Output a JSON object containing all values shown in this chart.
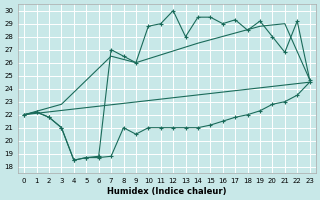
{
  "xlabel": "Humidex (Indice chaleur)",
  "background_color": "#c8e8e8",
  "grid_color": "#ffffff",
  "line_color": "#1a6b5a",
  "xlim": [
    -0.5,
    23.5
  ],
  "ylim": [
    17.5,
    30.5
  ],
  "xticks": [
    0,
    1,
    2,
    3,
    4,
    5,
    6,
    7,
    8,
    9,
    10,
    11,
    12,
    13,
    14,
    15,
    16,
    17,
    18,
    19,
    20,
    21,
    22,
    23
  ],
  "yticks": [
    18,
    19,
    20,
    21,
    22,
    23,
    24,
    25,
    26,
    27,
    28,
    29,
    30
  ],
  "line_jagged_lower": {
    "x": [
      0,
      1,
      2,
      3,
      4,
      5,
      6,
      7,
      8,
      9,
      10,
      11,
      12,
      13,
      14,
      15,
      16,
      17,
      18,
      19,
      20,
      21,
      22,
      23
    ],
    "y": [
      22.0,
      22.2,
      21.8,
      21.0,
      18.5,
      18.7,
      18.7,
      18.8,
      21.0,
      20.5,
      21.0,
      21.0,
      21.0,
      21.0,
      21.0,
      21.2,
      21.5,
      21.8,
      22.0,
      22.3,
      22.8,
      23.0,
      23.5,
      24.5
    ]
  },
  "line_jagged_upper": {
    "x": [
      0,
      1,
      2,
      3,
      4,
      5,
      6,
      7,
      8,
      9,
      10,
      11,
      12,
      13,
      14,
      15,
      16,
      17,
      18,
      19,
      20,
      21,
      22,
      23
    ],
    "y": [
      22.0,
      22.2,
      21.8,
      21.0,
      18.5,
      18.7,
      18.8,
      27.0,
      26.5,
      26.0,
      28.8,
      29.0,
      30.0,
      28.0,
      29.5,
      29.5,
      29.0,
      29.3,
      28.5,
      29.2,
      28.0,
      26.8,
      29.2,
      24.7
    ]
  },
  "line_smooth_upper": {
    "x": [
      0,
      3,
      7,
      9,
      14,
      19,
      21,
      23
    ],
    "y": [
      22.0,
      22.8,
      26.5,
      26.0,
      27.5,
      28.8,
      29.0,
      24.7
    ]
  },
  "line_straight_lower": {
    "x": [
      0,
      23
    ],
    "y": [
      22.0,
      24.5
    ]
  }
}
